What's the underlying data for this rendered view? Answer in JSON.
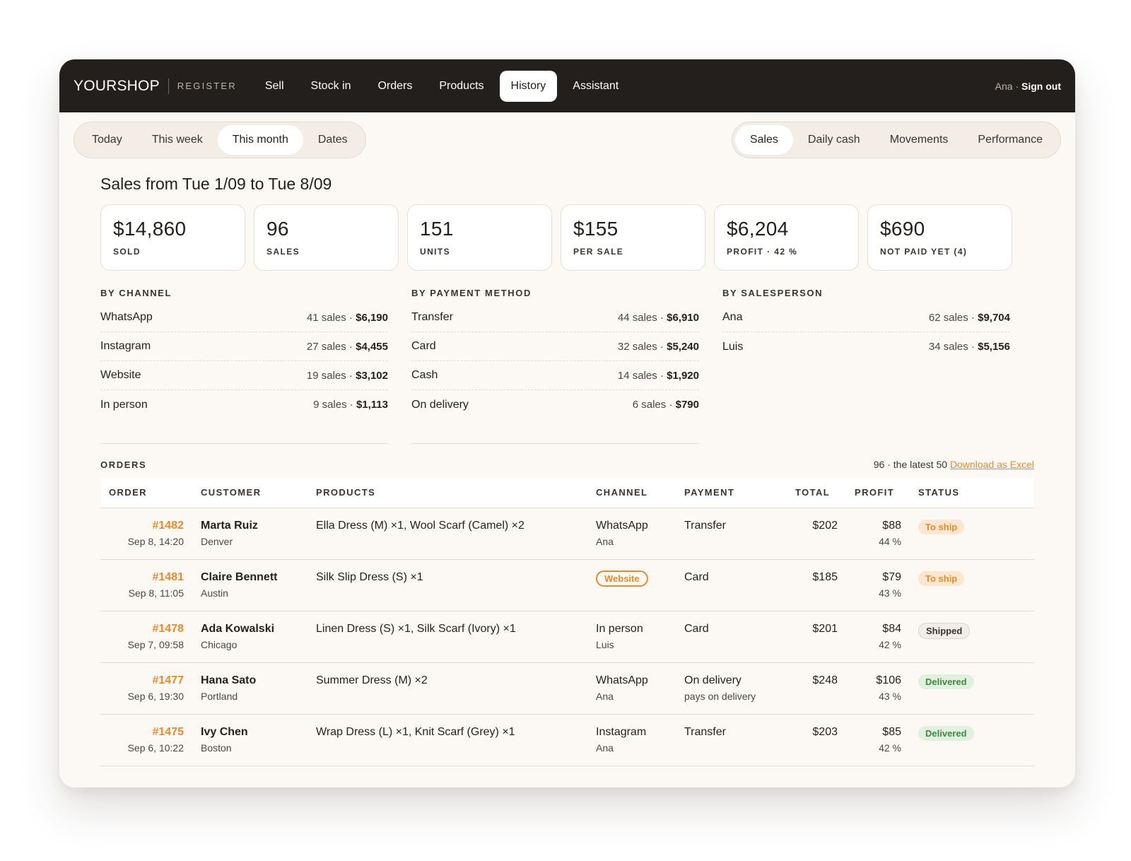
{
  "brand": {
    "name": "YOURSHOP",
    "sub": "REGISTER"
  },
  "nav": [
    "Sell",
    "Stock in",
    "Orders",
    "Products",
    "History",
    "Assistant"
  ],
  "user": {
    "name": "Ana ·",
    "signout": "Sign out"
  },
  "periods": [
    "Today",
    "This week",
    "This month",
    "Dates"
  ],
  "views": [
    "Sales",
    "Daily cash",
    "Movements",
    "Performance"
  ],
  "range_title": "Sales from Tue 1/09 to Tue 8/09",
  "cards": [
    {
      "value": "$14,860",
      "label": "SOLD"
    },
    {
      "value": "96",
      "label": "SALES"
    },
    {
      "value": "151",
      "label": "UNITS"
    },
    {
      "value": "$155",
      "label": "PER SALE"
    },
    {
      "value": "$6,204",
      "label": "PROFIT · 42 %"
    },
    {
      "value": "$690",
      "label": "NOT PAID YET (4)"
    }
  ],
  "breakdowns": {
    "channel": {
      "title": "BY CHANNEL",
      "rows": [
        {
          "name": "WhatsApp",
          "count": "41 sales ·",
          "amount": "$6,190"
        },
        {
          "name": "Instagram",
          "count": "27 sales ·",
          "amount": "$4,455"
        },
        {
          "name": "Website",
          "count": "19 sales ·",
          "amount": "$3,102"
        },
        {
          "name": "In person",
          "count": "9 sales ·",
          "amount": "$1,113"
        }
      ]
    },
    "payment": {
      "title": "BY PAYMENT METHOD",
      "rows": [
        {
          "name": "Transfer",
          "count": "44 sales ·",
          "amount": "$6,910"
        },
        {
          "name": "Card",
          "count": "32 sales ·",
          "amount": "$5,240"
        },
        {
          "name": "Cash",
          "count": "14 sales ·",
          "amount": "$1,920"
        },
        {
          "name": "On delivery",
          "count": "6 sales ·",
          "amount": "$790"
        }
      ]
    },
    "salesperson": {
      "title": "BY SALESPERSON",
      "rows": [
        {
          "name": "Ana",
          "count": "62 sales ·",
          "amount": "$9,704"
        },
        {
          "name": "Luis",
          "count": "34 sales ·",
          "amount": "$5,156"
        }
      ]
    }
  },
  "orders": {
    "title": "ORDERS",
    "meta": "96 · the latest 50",
    "download": "Download as Excel",
    "columns": [
      "ORDER",
      "CUSTOMER",
      "PRODUCTS",
      "CHANNEL",
      "PAYMENT",
      "TOTAL",
      "PROFIT",
      "STATUS"
    ],
    "rows": [
      {
        "number": "#1482",
        "date": "Sep 8, 14:20",
        "customer": "Marta Ruiz",
        "city": "Denver",
        "products": "Ella Dress (M) ×1, Wool Scarf (Camel) ×2",
        "channel": "WhatsApp",
        "seller": "Ana",
        "payment": "Transfer",
        "payment_note": "",
        "total": "$202",
        "profit": "$88",
        "margin": "44 %",
        "status": "To ship"
      },
      {
        "number": "#1481",
        "date": "Sep 8, 11:05",
        "customer": "Claire Bennett",
        "city": "Austin",
        "products": "Silk Slip Dress (S) ×1",
        "channel": "Website",
        "seller": "",
        "payment": "Card",
        "payment_note": "",
        "total": "$185",
        "profit": "$79",
        "margin": "43 %",
        "status": "To ship"
      },
      {
        "number": "#1478",
        "date": "Sep 7, 09:58",
        "customer": "Ada Kowalski",
        "city": "Chicago",
        "products": "Linen Dress (S) ×1, Silk Scarf (Ivory) ×1",
        "channel": "In person",
        "seller": "Luis",
        "payment": "Card",
        "payment_note": "",
        "total": "$201",
        "profit": "$84",
        "margin": "42 %",
        "status": "Shipped"
      },
      {
        "number": "#1477",
        "date": "Sep 6, 19:30",
        "customer": "Hana Sato",
        "city": "Portland",
        "products": "Summer Dress (M) ×2",
        "channel": "WhatsApp",
        "seller": "Ana",
        "payment": "On delivery",
        "payment_note": "pays on delivery",
        "total": "$248",
        "profit": "$106",
        "margin": "43 %",
        "status": "Delivered"
      },
      {
        "number": "#1475",
        "date": "Sep 6, 10:22",
        "customer": "Ivy Chen",
        "city": "Boston",
        "products": "Wrap Dress (L) ×1, Knit Scarf (Grey) ×1",
        "channel": "Instagram",
        "seller": "Ana",
        "payment": "Transfer",
        "payment_note": "",
        "total": "$203",
        "profit": "$85",
        "margin": "42 %",
        "status": "Delivered"
      }
    ]
  },
  "colors": {
    "accent": "#e88a2e",
    "topbar": "#231f1c",
    "background": "#fcf8f3"
  }
}
